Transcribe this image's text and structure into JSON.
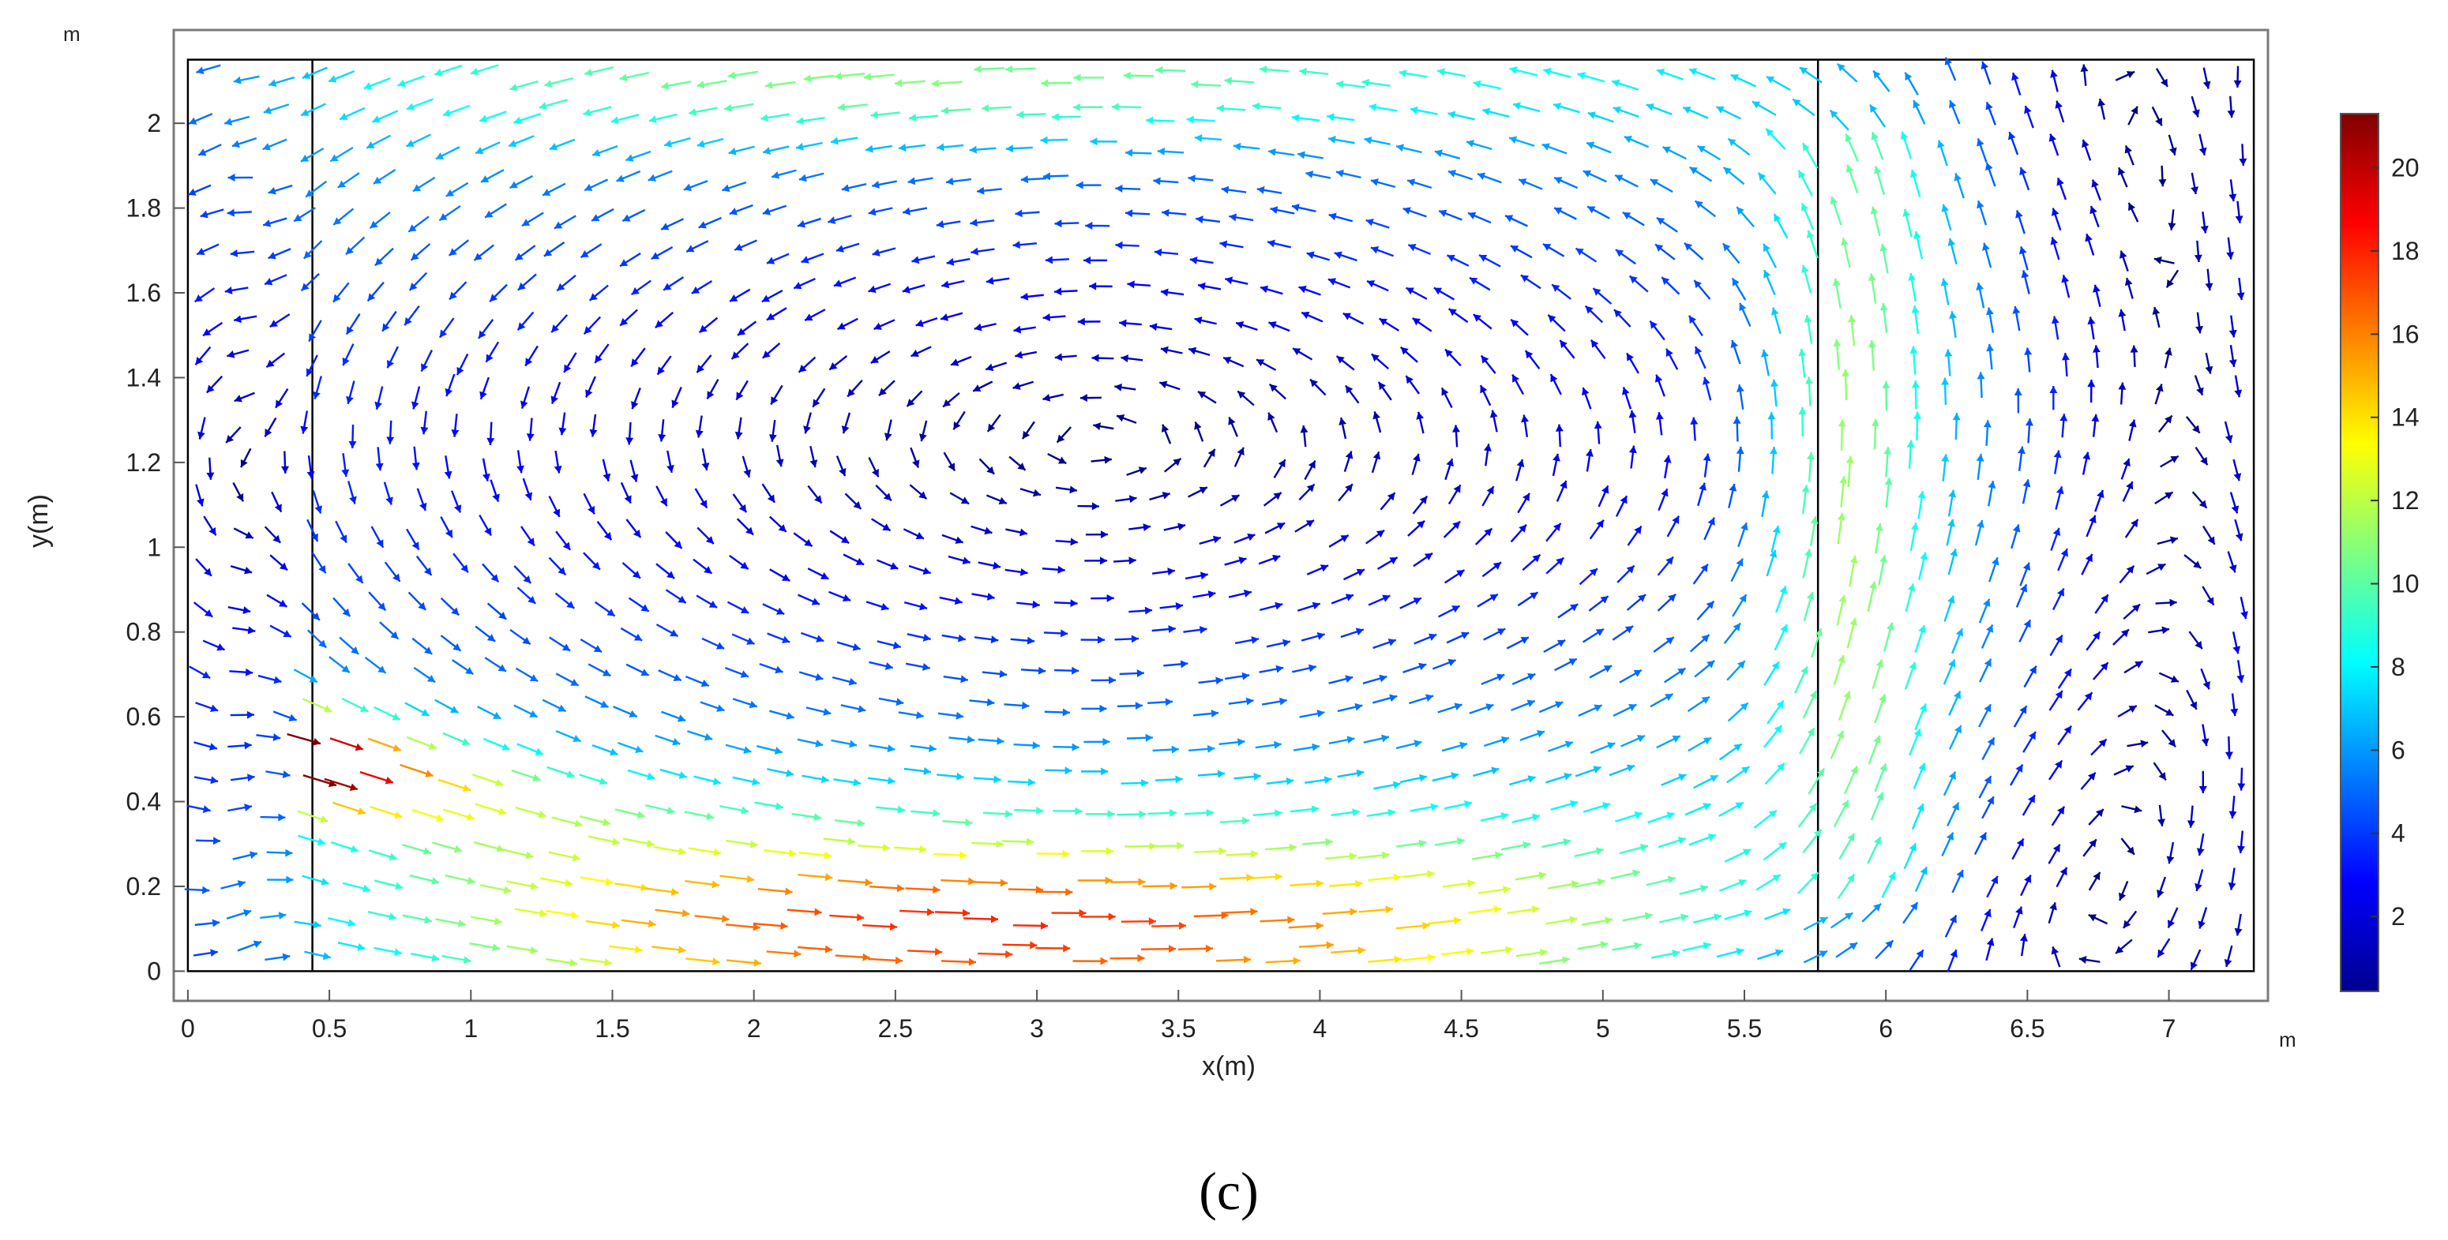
{
  "chart_data": {
    "type": "quiver",
    "xlabel": "x(m)",
    "ylabel": "y(m)",
    "x_unit": "m",
    "y_unit": "m",
    "xlim": [
      -0.05,
      7.35
    ],
    "ylim": [
      -0.07,
      2.22
    ],
    "xticks": [
      "0",
      "0.5",
      "1",
      "1.5",
      "2",
      "2.5",
      "3",
      "3.5",
      "4",
      "4.5",
      "5",
      "5.5",
      "6",
      "6.5",
      "7"
    ],
    "yticks": [
      "0",
      "0.2",
      "0.4",
      "0.6",
      "0.8",
      "1",
      "1.2",
      "1.4",
      "1.6",
      "1.8",
      "2"
    ],
    "domain": {
      "x": [
        0,
        7.3
      ],
      "y": [
        0,
        2.15
      ]
    },
    "interior_boundaries_x": [
      0.44,
      5.76
    ],
    "colormap": "jet",
    "colorbar": {
      "min": 0.2,
      "max": 21.3,
      "ticks": [
        "2",
        "4",
        "6",
        "8",
        "10",
        "12",
        "14",
        "16",
        "18",
        "20"
      ]
    },
    "flow_features": {
      "main_vortex": {
        "center": [
          3.2,
          1.25
        ],
        "rotation": "counterclockwise"
      },
      "right_vortex": {
        "center": [
          6.6,
          1.1
        ],
        "rotation": "clockwise"
      },
      "inlet_jet": {
        "origin": [
          0.45,
          0.5
        ],
        "direction": "lower-right",
        "peak_speed": 21
      },
      "max_speed": 21.3
    }
  },
  "caption": "(c)"
}
